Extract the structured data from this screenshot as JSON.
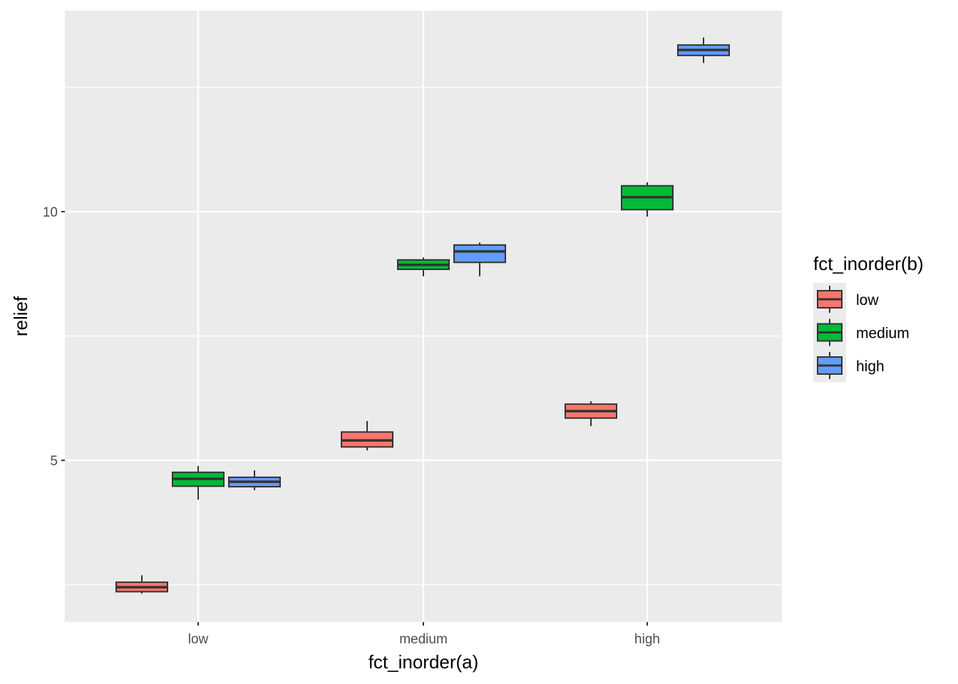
{
  "chart_data": {
    "type": "boxplot",
    "xlabel": "fct_inorder(a)",
    "ylabel": "relief",
    "categories": [
      "low",
      "medium",
      "high"
    ],
    "ylim": [
      1.75,
      14.04
    ],
    "yticks": [
      5,
      10
    ],
    "ytick_labels": [
      "5",
      "10"
    ],
    "grid": true,
    "legend": {
      "title": "fct_inorder(b)",
      "placement": "right",
      "entries": [
        "low",
        "medium",
        "high"
      ]
    },
    "colors": {
      "low": "#F8766D",
      "medium": "#00BA38",
      "high": "#619CFF"
    },
    "series": [
      {
        "name": "low",
        "boxes": [
          {
            "x": "low",
            "ymin": 2.32,
            "q1": 2.36,
            "median": 2.45,
            "q3": 2.55,
            "ymax": 2.69
          },
          {
            "x": "medium",
            "ymin": 5.2,
            "q1": 5.27,
            "median": 5.4,
            "q3": 5.57,
            "ymax": 5.79
          },
          {
            "x": "high",
            "ymin": 5.69,
            "q1": 5.85,
            "median": 5.99,
            "q3": 6.13,
            "ymax": 6.19
          }
        ]
      },
      {
        "name": "medium",
        "boxes": [
          {
            "x": "low",
            "ymin": 4.21,
            "q1": 4.48,
            "median": 4.63,
            "q3": 4.76,
            "ymax": 4.89
          },
          {
            "x": "medium",
            "ymin": 8.7,
            "q1": 8.84,
            "median": 8.93,
            "q3": 9.03,
            "ymax": 9.08
          },
          {
            "x": "high",
            "ymin": 9.9,
            "q1": 10.04,
            "median": 10.29,
            "q3": 10.52,
            "ymax": 10.59
          }
        ]
      },
      {
        "name": "high",
        "boxes": [
          {
            "x": "low",
            "ymin": 4.4,
            "q1": 4.47,
            "median": 4.57,
            "q3": 4.66,
            "ymax": 4.8
          },
          {
            "x": "medium",
            "ymin": 8.7,
            "q1": 8.98,
            "median": 9.2,
            "q3": 9.33,
            "ymax": 9.38
          },
          {
            "x": "high",
            "ymin": 12.99,
            "q1": 13.14,
            "median": 13.25,
            "q3": 13.35,
            "ymax": 13.5
          }
        ]
      }
    ]
  }
}
